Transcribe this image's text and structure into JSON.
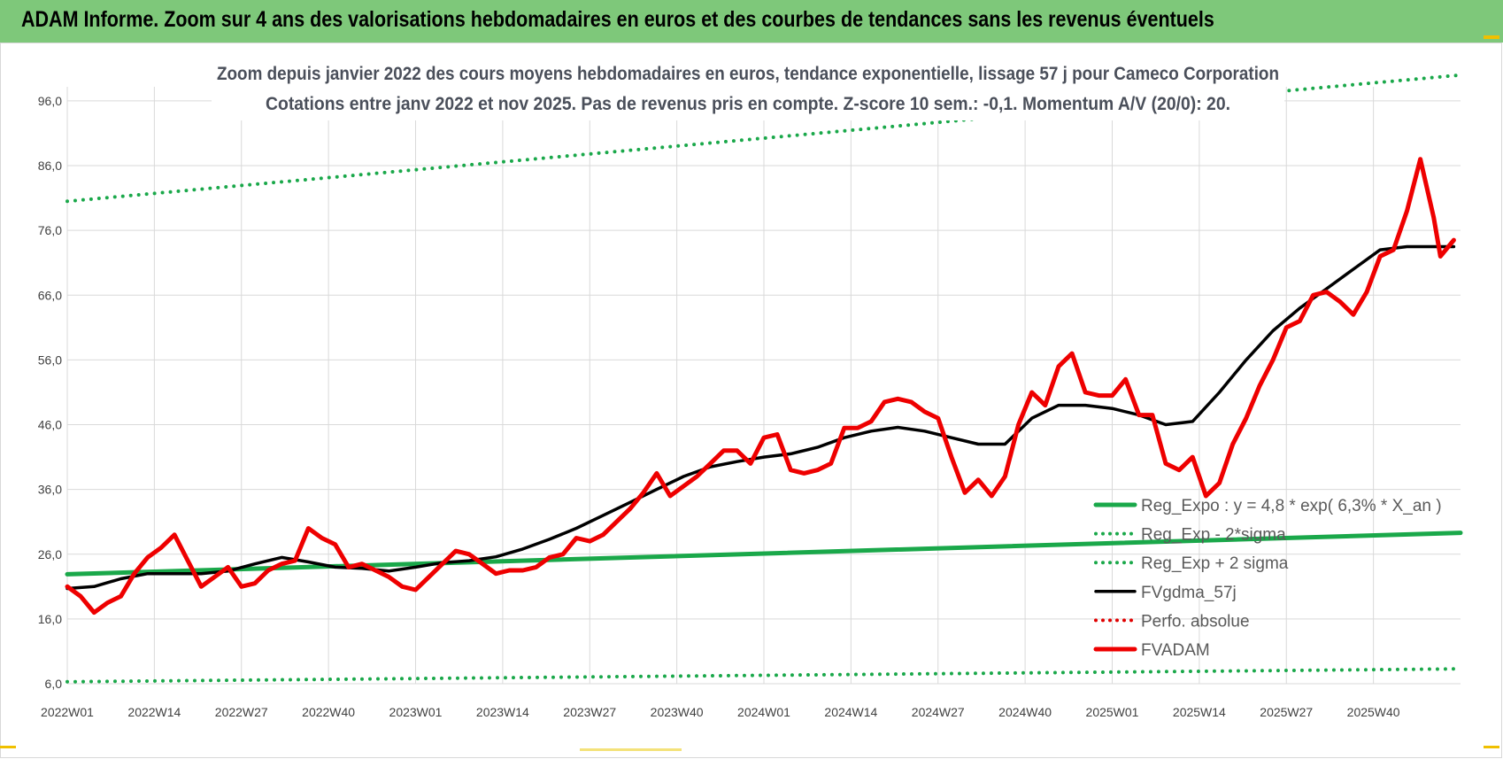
{
  "header": {
    "title": "ADAM Informe. Zoom sur 4 ans des valorisations hebdomadaires en euros et des courbes de tendances sans les revenus éventuels"
  },
  "chart_data": {
    "type": "line",
    "title": "Zoom depuis janvier 2022 des cours moyens hebdomadaires en euros, tendance exponentielle, lissage 57 j pour Cameco Corporation",
    "subtitle": "Cotations entre janv 2022 et nov 2025. Pas de revenus pris en compte. Z-score 10 sem.: -0,1. Momentum A/V (20/0): 20.",
    "xlabel": "",
    "ylabel": "",
    "ylim": [
      6,
      99
    ],
    "yticks": [
      "6,0",
      "16,0",
      "26,0",
      "36,0",
      "46,0",
      "56,0",
      "66,0",
      "76,0",
      "86,0",
      "96,0"
    ],
    "x_tick_labels": [
      "2022W01",
      "2022W14",
      "2022W27",
      "2022W40",
      "2023W01",
      "2023W14",
      "2023W27",
      "2023W40",
      "2024W01",
      "2024W14",
      "2024W27",
      "2024W40",
      "2025W01",
      "2025W14",
      "2025W27",
      "2025W40"
    ],
    "x_range_weeks": [
      0,
      208
    ],
    "grid": true,
    "legend_position": "right",
    "series": [
      {
        "name": "Reg_Expo : y = 4,8 * exp( 6,3% *  X_an )",
        "color": "#1aa84a",
        "style": "solid",
        "x": [
          0,
          208
        ],
        "y": [
          22.9,
          29.3
        ]
      },
      {
        "name": "Reg_Exp - 2*sigma",
        "color": "#1aa84a",
        "style": "dotted",
        "x": [
          0,
          208
        ],
        "y": [
          6.3,
          8.3
        ]
      },
      {
        "name": "Reg_Exp + 2 sigma",
        "color": "#1aa84a",
        "style": "dotted",
        "x": [
          0,
          208
        ],
        "y": [
          80.5,
          100.0
        ]
      },
      {
        "name": "FVgdma_57j",
        "color": "#000000",
        "style": "solid",
        "x": [
          0,
          4,
          8,
          12,
          16,
          20,
          24,
          28,
          32,
          36,
          40,
          44,
          48,
          52,
          56,
          60,
          64,
          68,
          72,
          76,
          80,
          84,
          88,
          92,
          96,
          100,
          104,
          108,
          112,
          116,
          120,
          124,
          128,
          132,
          136,
          140,
          144,
          148,
          152,
          156,
          160,
          164,
          168,
          172,
          176,
          180,
          184,
          188,
          192,
          196,
          200,
          204,
          207
        ],
        "y": [
          20.7,
          21.0,
          22.2,
          23.0,
          23.0,
          23.0,
          23.4,
          24.5,
          25.5,
          24.8,
          24.0,
          23.8,
          23.4,
          24.0,
          24.7,
          25.0,
          25.6,
          26.8,
          28.3,
          30.0,
          32.0,
          34.0,
          36.0,
          38.0,
          39.5,
          40.3,
          41.0,
          41.5,
          42.5,
          44.0,
          45.0,
          45.6,
          45.0,
          44.0,
          43.0,
          43.0,
          47.0,
          49.0,
          49.0,
          48.5,
          47.5,
          46.0,
          46.5,
          51.0,
          56.0,
          60.5,
          64.0,
          67.0,
          70.0,
          73.0,
          73.5,
          73.5,
          73.5
        ]
      },
      {
        "name": "Perfo. absolue",
        "color": "#e00000",
        "style": "dotted",
        "x": [],
        "y": []
      },
      {
        "name": "FVADAM",
        "color": "#ee0000",
        "style": "solid",
        "x": [
          0,
          2,
          4,
          6,
          8,
          10,
          12,
          14,
          16,
          18,
          20,
          22,
          24,
          26,
          28,
          30,
          32,
          34,
          36,
          38,
          40,
          42,
          44,
          46,
          48,
          50,
          52,
          54,
          56,
          58,
          60,
          62,
          64,
          66,
          68,
          70,
          72,
          74,
          76,
          78,
          80,
          82,
          84,
          86,
          88,
          90,
          92,
          94,
          96,
          98,
          100,
          102,
          104,
          106,
          108,
          110,
          112,
          114,
          116,
          118,
          120,
          122,
          124,
          126,
          128,
          130,
          132,
          134,
          136,
          138,
          140,
          142,
          144,
          146,
          148,
          150,
          152,
          154,
          156,
          158,
          160,
          162,
          164,
          166,
          168,
          170,
          172,
          174,
          176,
          178,
          180,
          182,
          184,
          186,
          188,
          190,
          192,
          194,
          196,
          198,
          200,
          202,
          204,
          205,
          207
        ],
        "y": [
          21.0,
          19.5,
          17.0,
          18.5,
          19.5,
          23.0,
          25.5,
          27.0,
          29.0,
          25.0,
          21.0,
          22.5,
          24.0,
          21.0,
          21.5,
          23.5,
          24.5,
          25.0,
          30.0,
          28.5,
          27.5,
          24.0,
          24.5,
          23.5,
          22.5,
          21.0,
          20.5,
          22.5,
          24.5,
          26.5,
          26.0,
          24.5,
          23.0,
          23.5,
          23.5,
          24.0,
          25.5,
          26.0,
          28.5,
          28.0,
          29.0,
          31.0,
          33.0,
          35.5,
          38.5,
          35.0,
          36.5,
          38.0,
          40.0,
          42.0,
          42.0,
          40.0,
          44.0,
          44.5,
          39.0,
          38.5,
          39.0,
          40.0,
          45.5,
          45.5,
          46.5,
          49.5,
          50.0,
          49.5,
          48.0,
          47.0,
          41.0,
          35.5,
          37.5,
          35.0,
          38.0,
          46.0,
          51.0,
          49.0,
          55.0,
          57.0,
          51.0,
          50.5,
          50.5,
          53.0,
          47.5,
          47.5,
          40.0,
          39.0,
          41.0,
          35.0,
          37.0,
          43.0,
          47.0,
          52.0,
          56.0,
          61.0,
          62.0,
          66.0,
          66.5,
          65.0,
          63.0,
          66.5,
          72.0,
          73.0,
          79.0,
          87.0,
          78.0,
          72.0,
          74.5
        ]
      }
    ]
  }
}
